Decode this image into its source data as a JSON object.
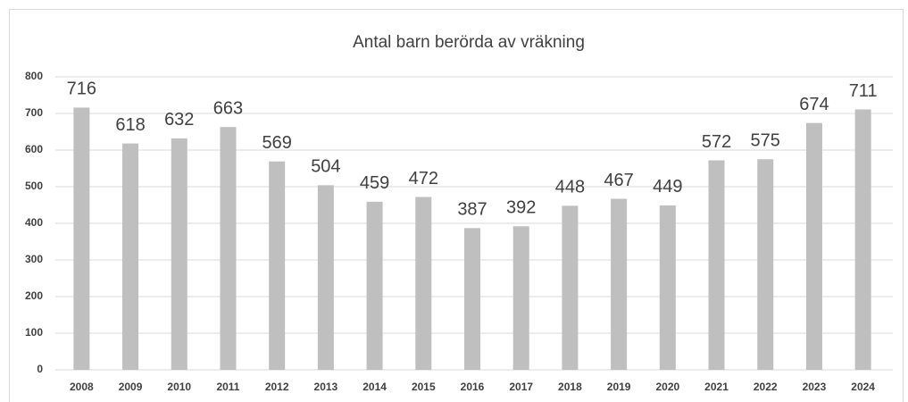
{
  "chart_data": {
    "type": "bar",
    "title": "Antal barn berörda av vräkning",
    "categories": [
      "2008",
      "2009",
      "2010",
      "2011",
      "2012",
      "2013",
      "2014",
      "2015",
      "2016",
      "2017",
      "2018",
      "2019",
      "2020",
      "2021",
      "2022",
      "2023",
      "2024"
    ],
    "values": [
      716,
      618,
      632,
      663,
      569,
      504,
      459,
      472,
      387,
      392,
      448,
      467,
      449,
      572,
      575,
      674,
      711
    ],
    "color": "#bfbfbf",
    "ylim": [
      0,
      800
    ],
    "yticks": [
      0,
      100,
      200,
      300,
      400,
      500,
      600,
      700,
      800
    ],
    "grid": true
  }
}
